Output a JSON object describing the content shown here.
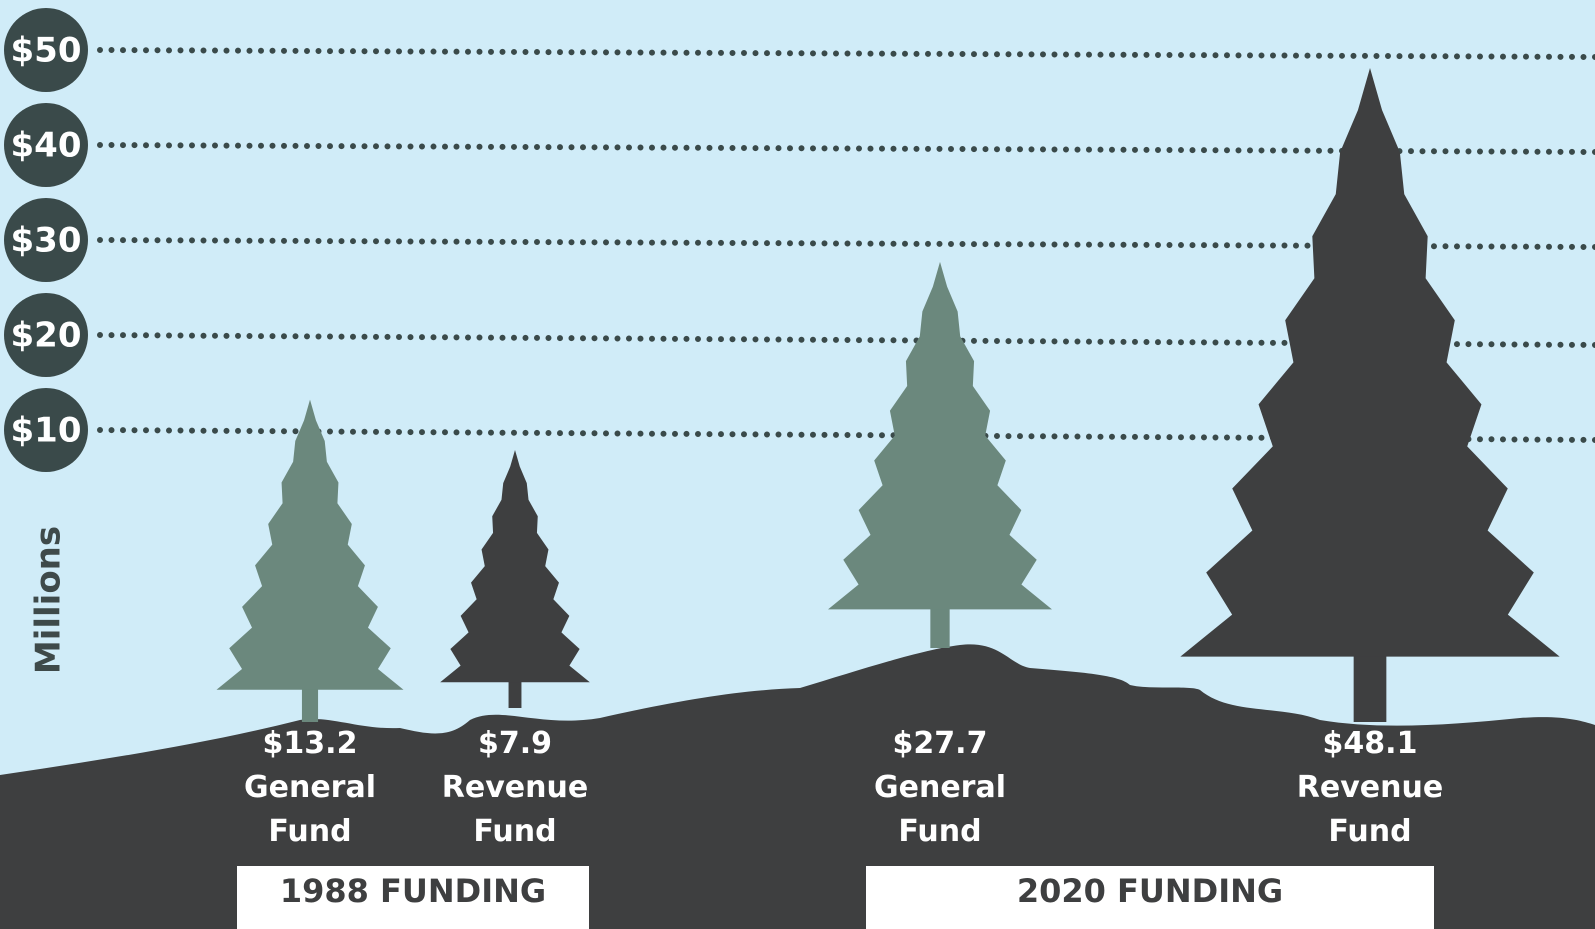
{
  "chart_data": {
    "type": "tree",
    "y_label": "Millions",
    "categories": [
      "1988 FUNDING",
      "2020 FUNDING"
    ],
    "series": [
      {
        "name": "General Fund",
        "color": "#6b887d",
        "values": [
          13.2,
          27.7
        ],
        "value_labels": [
          "$13.2",
          "$27.7"
        ]
      },
      {
        "name": "Revenue Fund",
        "color": "#3e3f40",
        "values": [
          7.9,
          48.1
        ],
        "value_labels": [
          "$7.9",
          "$48.1"
        ]
      }
    ],
    "ylim": [
      0,
      50
    ],
    "yticks": [
      {
        "value": 10,
        "label": "$10"
      },
      {
        "value": 20,
        "label": "$20"
      },
      {
        "value": 30,
        "label": "$30"
      },
      {
        "value": 40,
        "label": "$40"
      },
      {
        "value": 50,
        "label": "$50"
      }
    ],
    "grid": true
  }
}
